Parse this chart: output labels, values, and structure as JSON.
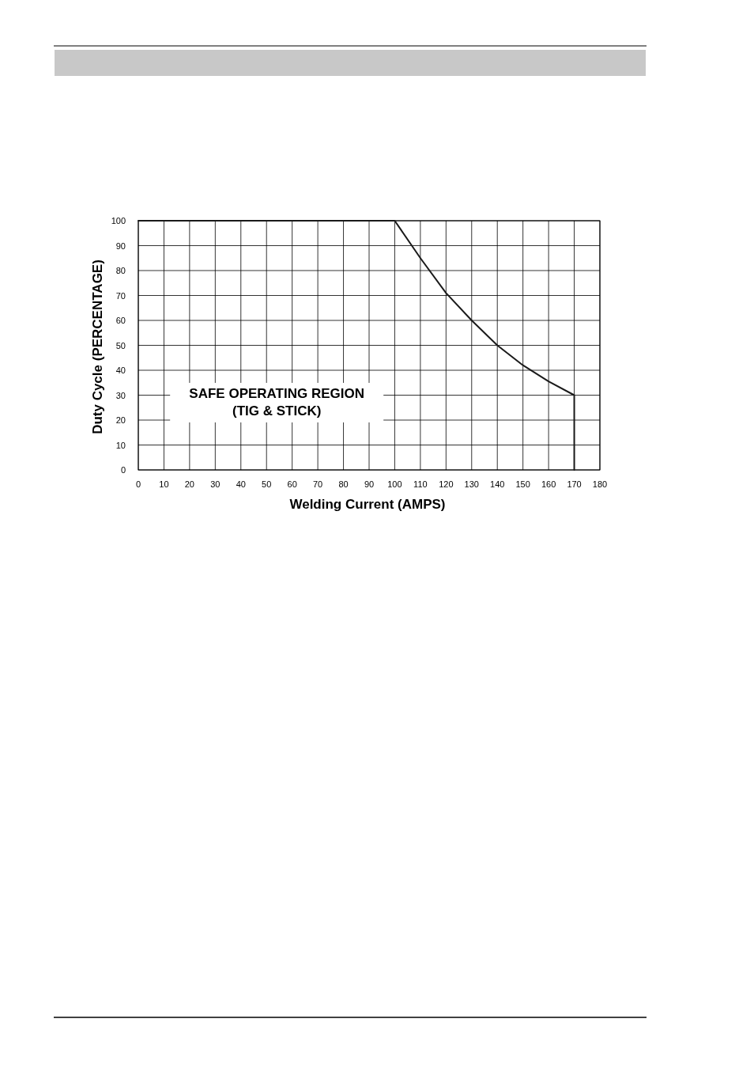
{
  "chart_data": {
    "type": "line",
    "xlabel": "Welding Current (AMPS)",
    "ylabel": "Duty Cycle (PERCENTAGE)",
    "x": [
      0,
      100,
      110,
      120,
      130,
      140,
      150,
      160,
      170,
      170
    ],
    "series": [
      {
        "color": "#1a1a1a",
        "values": [
          100,
          100,
          85,
          71,
          60,
          50,
          42,
          35.5,
          30,
          0
        ]
      }
    ],
    "xlim": [
      0,
      180
    ],
    "xticks": [
      0,
      10,
      20,
      30,
      40,
      50,
      60,
      70,
      80,
      90,
      100,
      110,
      120,
      130,
      140,
      150,
      160,
      170,
      180
    ],
    "ylim": [
      0,
      100
    ],
    "yticks": [
      0,
      10,
      20,
      30,
      40,
      50,
      60,
      70,
      80,
      90,
      100
    ],
    "grid": true,
    "marker": "none",
    "line_style": "solid",
    "annotations": [
      "SAFE OPERATING REGION\n(TIG & STICK)"
    ]
  }
}
